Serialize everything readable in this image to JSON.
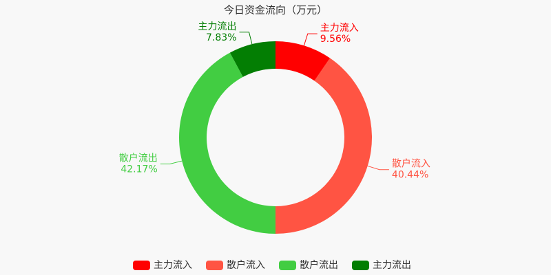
{
  "chart_data": {
    "type": "pie",
    "title": "今日资金流向（万元）",
    "categories": [
      "主力流入",
      "散户流入",
      "散户流出",
      "主力流出"
    ],
    "values": [
      9.56,
      40.44,
      42.17,
      7.83
    ],
    "value_labels": [
      "9.56%",
      "40.44%",
      "42.17%",
      "7.83%"
    ],
    "colors": [
      "#ff0000",
      "#ff5443",
      "#42cd42",
      "#037e03"
    ],
    "legend": "bottom"
  }
}
